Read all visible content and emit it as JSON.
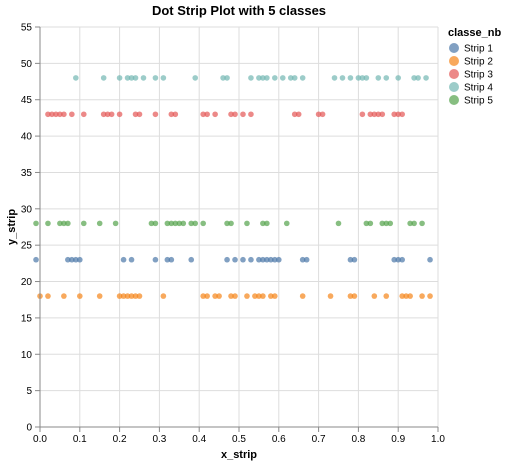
{
  "chart_data": {
    "type": "scatter",
    "title": "Dot Strip Plot with 5 classes",
    "xlabel": "x_strip",
    "ylabel": "y_strip",
    "xlim": [
      0,
      1
    ],
    "ylim": [
      0,
      55
    ],
    "xticks": [
      "0.0",
      "0.1",
      "0.2",
      "0.3",
      "0.4",
      "0.5",
      "0.6",
      "0.7",
      "0.8",
      "0.9",
      "1.0"
    ],
    "yticks": [
      "0",
      "5",
      "10",
      "15",
      "20",
      "25",
      "30",
      "35",
      "40",
      "45",
      "50",
      "55"
    ],
    "grid": true,
    "legend": {
      "title": "classe_nb",
      "position": "right"
    },
    "series": [
      {
        "name": "Strip 1",
        "color": "#4c78a8",
        "y": 23,
        "x": [
          -0.01,
          0.07,
          0.08,
          0.09,
          0.1,
          0.21,
          0.23,
          0.29,
          0.32,
          0.33,
          0.38,
          0.47,
          0.49,
          0.51,
          0.53,
          0.55,
          0.56,
          0.57,
          0.58,
          0.59,
          0.6,
          0.66,
          0.67,
          0.78,
          0.79,
          0.89,
          0.9,
          0.91,
          0.98
        ]
      },
      {
        "name": "Strip 2",
        "color": "#f58518",
        "y": 18,
        "x": [
          0.0,
          0.02,
          0.06,
          0.1,
          0.15,
          0.2,
          0.21,
          0.22,
          0.23,
          0.24,
          0.25,
          0.31,
          0.41,
          0.42,
          0.44,
          0.45,
          0.48,
          0.49,
          0.52,
          0.54,
          0.55,
          0.56,
          0.58,
          0.59,
          0.66,
          0.73,
          0.78,
          0.79,
          0.84,
          0.87,
          0.91,
          0.92,
          0.93,
          0.96,
          0.98
        ]
      },
      {
        "name": "Strip 3",
        "color": "#e45756",
        "y": 43,
        "x": [
          0.02,
          0.03,
          0.04,
          0.05,
          0.06,
          0.08,
          0.11,
          0.16,
          0.17,
          0.18,
          0.2,
          0.24,
          0.25,
          0.29,
          0.33,
          0.34,
          0.41,
          0.42,
          0.44,
          0.48,
          0.49,
          0.51,
          0.53,
          0.64,
          0.65,
          0.7,
          0.71,
          0.81,
          0.83,
          0.84,
          0.85,
          0.86,
          0.89,
          0.9,
          0.91
        ]
      },
      {
        "name": "Strip 4",
        "color": "#72b7b2",
        "y": 48,
        "x": [
          0.09,
          0.16,
          0.2,
          0.22,
          0.23,
          0.24,
          0.26,
          0.29,
          0.31,
          0.39,
          0.46,
          0.47,
          0.53,
          0.55,
          0.56,
          0.57,
          0.59,
          0.61,
          0.63,
          0.64,
          0.66,
          0.74,
          0.76,
          0.78,
          0.8,
          0.81,
          0.82,
          0.85,
          0.87,
          0.9,
          0.94,
          0.95,
          0.97
        ]
      },
      {
        "name": "Strip 5",
        "color": "#54a24b",
        "y": 28,
        "x": [
          -0.01,
          0.02,
          0.05,
          0.06,
          0.07,
          0.11,
          0.15,
          0.19,
          0.28,
          0.29,
          0.32,
          0.33,
          0.34,
          0.35,
          0.36,
          0.38,
          0.39,
          0.41,
          0.47,
          0.48,
          0.52,
          0.56,
          0.57,
          0.62,
          0.75,
          0.82,
          0.83,
          0.86,
          0.87,
          0.88,
          0.93,
          0.94,
          0.96
        ]
      }
    ]
  }
}
